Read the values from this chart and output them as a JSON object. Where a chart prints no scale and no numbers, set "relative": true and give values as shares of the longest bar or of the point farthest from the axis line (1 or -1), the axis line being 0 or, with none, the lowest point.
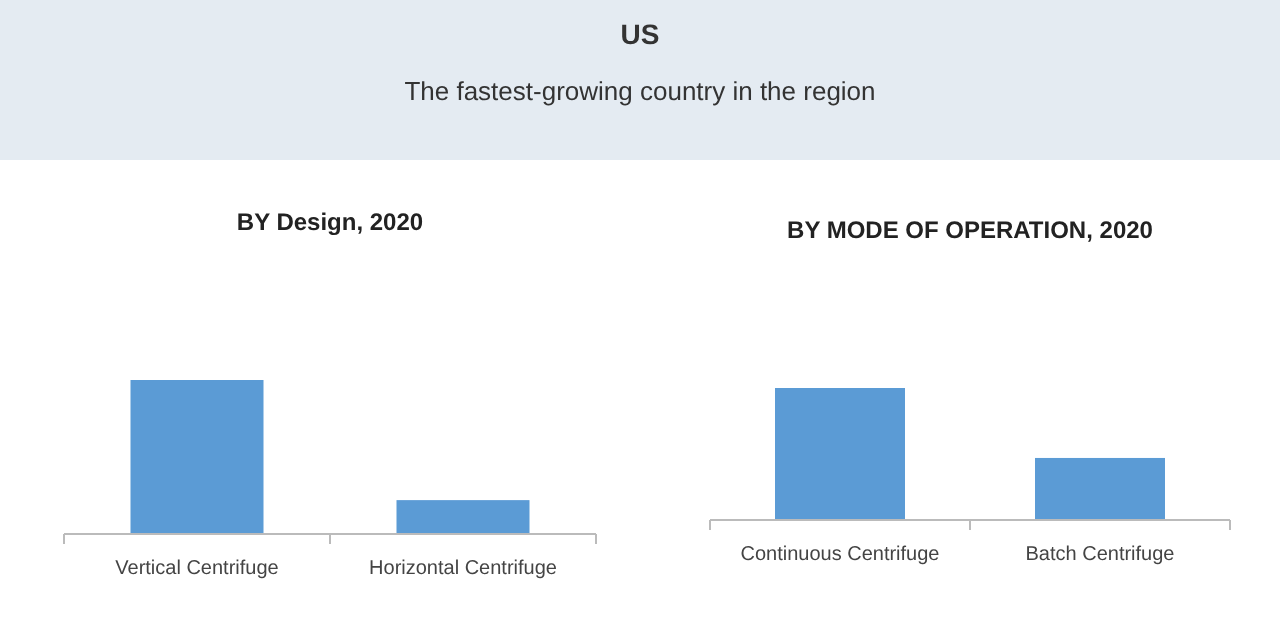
{
  "chart_data": [
    {
      "type": "other",
      "title": "US",
      "subtitle": "The fastest-growing country in the region"
    },
    {
      "type": "bar",
      "title": "BY Design, 2020",
      "categories": [
        "Vertical Centrifuge",
        "Horizontal Centrifuge"
      ],
      "values": [
        1,
        0.22
      ],
      "color": "#5b9bd5",
      "relative": true
    },
    {
      "type": "bar",
      "title": "BY MODE OF OPERATION, 2020",
      "categories": [
        "Continuous Centrifuge",
        "Batch Centrifuge"
      ],
      "values": [
        1,
        0.47
      ],
      "color": "#5b9bd5",
      "relative": true
    }
  ]
}
